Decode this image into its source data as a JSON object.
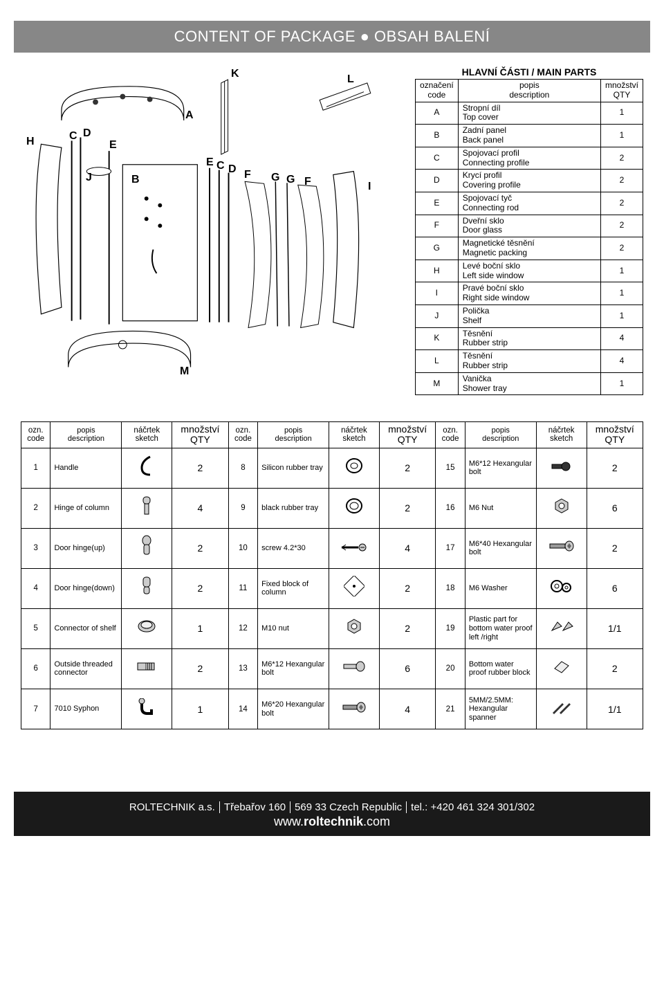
{
  "header": {
    "title": "CONTENT OF PACKAGE ● OBSAH BALENÍ",
    "bg_color": "#878787",
    "text_color": "#ffffff"
  },
  "main_parts": {
    "title": "HLAVNÍ ČÁSTI / MAIN PARTS",
    "headers": {
      "code_cz": "označení",
      "code_en": "code",
      "desc_cz": "popis",
      "desc_en": "description",
      "qty_cz": "množství",
      "qty_en": "QTY"
    },
    "rows": [
      {
        "code": "A",
        "cz": "Stropní díl",
        "en": "Top cover",
        "qty": "1"
      },
      {
        "code": "B",
        "cz": "Zadní panel",
        "en": "Back panel",
        "qty": "1"
      },
      {
        "code": "C",
        "cz": "Spojovací profil",
        "en": "Connecting profile",
        "qty": "2"
      },
      {
        "code": "D",
        "cz": "Krycí profil",
        "en": "Covering profile",
        "qty": "2"
      },
      {
        "code": "E",
        "cz": "Spojovací tyč",
        "en": "Connecting rod",
        "qty": "2"
      },
      {
        "code": "F",
        "cz": "Dveřní sklo",
        "en": "Door glass",
        "qty": "2"
      },
      {
        "code": "G",
        "cz": "Magnetické těsnění",
        "en": "Magnetic packing",
        "qty": "2"
      },
      {
        "code": "H",
        "cz": "Levé boční sklo",
        "en": "Left side window",
        "qty": "1"
      },
      {
        "code": "I",
        "cz": "Pravé boční sklo",
        "en": "Right side window",
        "qty": "1"
      },
      {
        "code": "J",
        "cz": "Polička",
        "en": "Shelf",
        "qty": "1"
      },
      {
        "code": "K",
        "cz": "Těsnění",
        "en": "Rubber strip",
        "qty": "4"
      },
      {
        "code": "L",
        "cz": "Těsnění",
        "en": "Rubber strip",
        "qty": "4"
      },
      {
        "code": "M",
        "cz": "Vanička",
        "en": "Shower tray",
        "qty": "1"
      }
    ]
  },
  "diagram_labels": [
    "A",
    "B",
    "C",
    "D",
    "E",
    "F",
    "G",
    "H",
    "I",
    "J",
    "K",
    "L",
    "M"
  ],
  "accessories": {
    "headers": {
      "code_cz": "ozn.",
      "code_en": "code",
      "desc_cz": "popis",
      "desc_en": "description",
      "sketch_cz": "náčrtek",
      "sketch_en": "sketch",
      "qty_cz": "množství",
      "qty_en": "QTY"
    },
    "groups": [
      [
        {
          "code": "1",
          "desc": "Handle",
          "icon": "handle",
          "qty": "2"
        },
        {
          "code": "2",
          "desc": "Hinge of column",
          "icon": "hinge-col",
          "qty": "4"
        },
        {
          "code": "3",
          "desc": "Door hinge(up)",
          "icon": "hinge-up",
          "qty": "2"
        },
        {
          "code": "4",
          "desc": "Door hinge(down)",
          "icon": "hinge-down",
          "qty": "2"
        },
        {
          "code": "5",
          "desc": "Connector of shelf",
          "icon": "connector",
          "qty": "1"
        },
        {
          "code": "6",
          "desc": "Outside threaded connector",
          "icon": "thread",
          "qty": "2"
        },
        {
          "code": "7",
          "desc": "7010 Syphon",
          "icon": "syphon",
          "qty": "1"
        }
      ],
      [
        {
          "code": "8",
          "desc": "Silicon rubber tray",
          "icon": "ring1",
          "qty": "2"
        },
        {
          "code": "9",
          "desc": "black rubber tray",
          "icon": "ring2",
          "qty": "2"
        },
        {
          "code": "10",
          "desc": "screw 4.2*30",
          "icon": "screw",
          "qty": "4"
        },
        {
          "code": "11",
          "desc": "Fixed block of column",
          "icon": "block",
          "qty": "2"
        },
        {
          "code": "12",
          "desc": "M10 nut",
          "icon": "nut",
          "qty": "2"
        },
        {
          "code": "13",
          "desc": "M6*12 Hexangular bolt",
          "icon": "bolt1",
          "qty": "6"
        },
        {
          "code": "14",
          "desc": "M6*20 Hexangular bolt",
          "icon": "bolt2",
          "qty": "4"
        }
      ],
      [
        {
          "code": "15",
          "desc": "M6*12 Hexangular bolt",
          "icon": "bolt3",
          "qty": "2"
        },
        {
          "code": "16",
          "desc": "M6 Nut",
          "icon": "nut2",
          "qty": "6"
        },
        {
          "code": "17",
          "desc": "M6*40 Hexangular bolt",
          "icon": "bolt4",
          "qty": "2"
        },
        {
          "code": "18",
          "desc": "M6 Washer",
          "icon": "washer",
          "qty": "6"
        },
        {
          "code": "19",
          "desc": "Plastic part for bottom water proof left /right",
          "icon": "plastic",
          "qty": "1/1"
        },
        {
          "code": "20",
          "desc": "Bottom water proof rubber block",
          "icon": "rblock",
          "qty": "2"
        },
        {
          "code": "21",
          "desc": "5MM/2.5MM: Hexangular spanner",
          "icon": "spanner",
          "qty": "1/1"
        }
      ]
    ]
  },
  "footer": {
    "company": "ROLTECHNIK a.s.",
    "address": "Třebařov 160",
    "postal": "569 33 Czech Republic",
    "tel": "tel.: +420 461 324 301/302",
    "url_prefix": "www.",
    "url_bold": "roltechnik",
    "url_suffix": ".com",
    "bg_color": "#1a1a1a"
  }
}
